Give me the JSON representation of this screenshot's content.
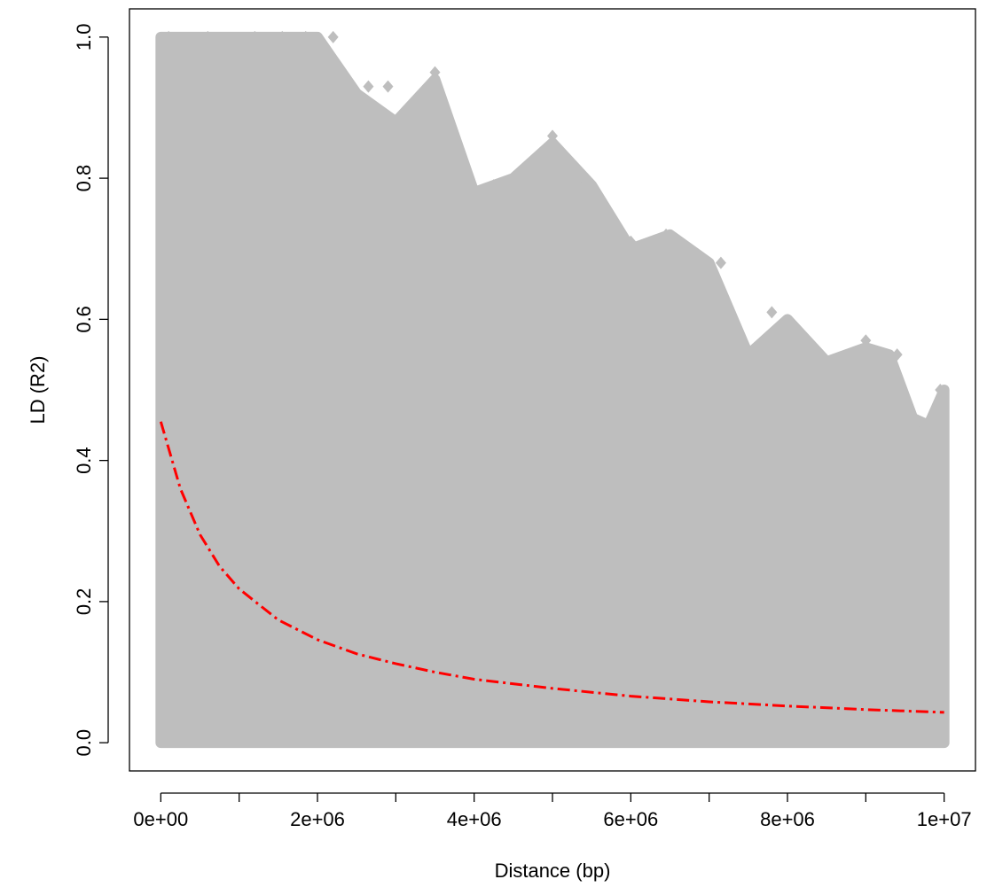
{
  "chart_data": {
    "type": "scatter",
    "xlabel": "Distance (bp)",
    "ylabel": "LD (R2)",
    "xlim": [
      -400000,
      10400000
    ],
    "ylim": [
      -0.04,
      1.04
    ],
    "x_ticks": [
      0,
      2000000,
      4000000,
      6000000,
      8000000,
      10000000
    ],
    "x_minor_ticks": [
      1000000,
      3000000,
      5000000,
      7000000,
      9000000
    ],
    "x_tick_labels": [
      "0e+00",
      "2e+06",
      "4e+06",
      "6e+06",
      "8e+06",
      "1e+07"
    ],
    "y_ticks": [
      0.0,
      0.2,
      0.4,
      0.6,
      0.8,
      1.0
    ],
    "y_tick_labels": [
      "0.0",
      "0.2",
      "0.4",
      "0.6",
      "0.8",
      "1.0"
    ],
    "grid": false,
    "legend": "none",
    "point_color": "#bebebe",
    "fit_color": "#ff0000",
    "series": [
      {
        "kind": "points",
        "upper_envelope": {
          "x": [
            0,
            1000000,
            2000000,
            2500000,
            3000000,
            3500000,
            4000000,
            4500000,
            5000000,
            5500000,
            6000000,
            6500000,
            7000000,
            7500000,
            8000000,
            8500000,
            9000000,
            9300000,
            9600000,
            9800000,
            10000000
          ],
          "y": [
            1.0,
            1.0,
            1.0,
            0.92,
            0.88,
            0.94,
            0.78,
            0.8,
            0.85,
            0.79,
            0.7,
            0.72,
            0.68,
            0.55,
            0.6,
            0.54,
            0.56,
            0.55,
            0.46,
            0.45,
            0.5
          ]
        },
        "outlier_points": [
          {
            "x": 100000,
            "y": 1.0
          },
          {
            "x": 600000,
            "y": 1.0
          },
          {
            "x": 1200000,
            "y": 1.0
          },
          {
            "x": 1550000,
            "y": 1.0
          },
          {
            "x": 1850000,
            "y": 1.0
          },
          {
            "x": 2200000,
            "y": 1.0
          },
          {
            "x": 2400000,
            "y": 0.93
          },
          {
            "x": 2650000,
            "y": 0.93
          },
          {
            "x": 2900000,
            "y": 0.93
          },
          {
            "x": 3150000,
            "y": 0.88
          },
          {
            "x": 3500000,
            "y": 0.95
          },
          {
            "x": 3700000,
            "y": 0.85
          },
          {
            "x": 3850000,
            "y": 0.81
          },
          {
            "x": 4250000,
            "y": 0.79
          },
          {
            "x": 4700000,
            "y": 0.81
          },
          {
            "x": 5000000,
            "y": 0.86
          },
          {
            "x": 5200000,
            "y": 0.82
          },
          {
            "x": 5500000,
            "y": 0.79
          },
          {
            "x": 5750000,
            "y": 0.69
          },
          {
            "x": 6000000,
            "y": 0.71
          },
          {
            "x": 6450000,
            "y": 0.72
          },
          {
            "x": 6700000,
            "y": 0.65
          },
          {
            "x": 7000000,
            "y": 0.68
          },
          {
            "x": 7150000,
            "y": 0.68
          },
          {
            "x": 7400000,
            "y": 0.56
          },
          {
            "x": 7800000,
            "y": 0.61
          },
          {
            "x": 8100000,
            "y": 0.57
          },
          {
            "x": 8500000,
            "y": 0.53
          },
          {
            "x": 8800000,
            "y": 0.53
          },
          {
            "x": 9000000,
            "y": 0.57
          },
          {
            "x": 9200000,
            "y": 0.53
          },
          {
            "x": 9400000,
            "y": 0.55
          },
          {
            "x": 9600000,
            "y": 0.46
          },
          {
            "x": 9800000,
            "y": 0.45
          },
          {
            "x": 9950000,
            "y": 0.5
          }
        ]
      },
      {
        "kind": "fit-line",
        "line_style": "dashdot",
        "x": [
          0,
          250000,
          500000,
          750000,
          1000000,
          1500000,
          2000000,
          2500000,
          3000000,
          3500000,
          4000000,
          5000000,
          6000000,
          7000000,
          8000000,
          9000000,
          10000000
        ],
        "y": [
          0.455,
          0.36,
          0.295,
          0.25,
          0.218,
          0.174,
          0.146,
          0.126,
          0.112,
          0.1,
          0.09,
          0.077,
          0.066,
          0.058,
          0.052,
          0.047,
          0.043
        ]
      }
    ]
  }
}
